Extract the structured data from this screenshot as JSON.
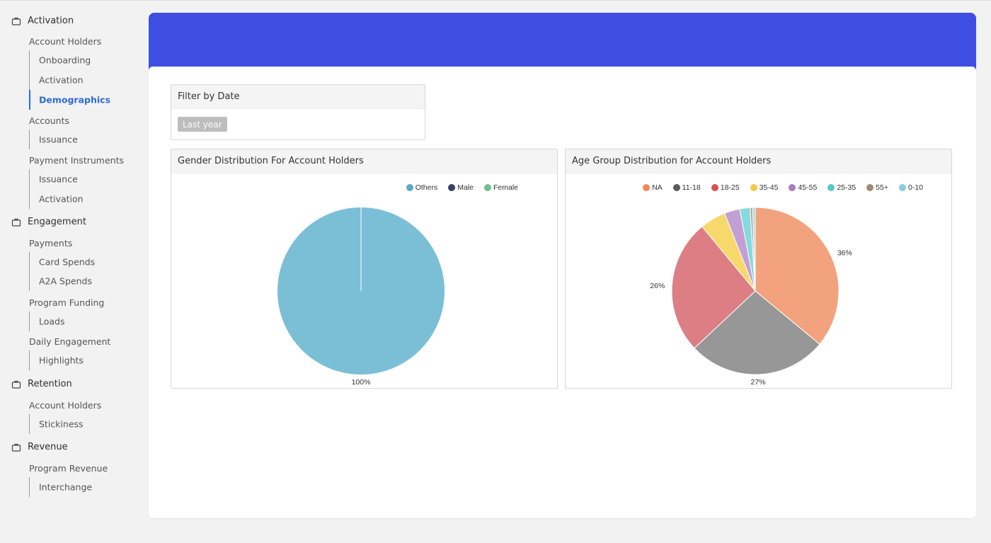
{
  "sidebar": {
    "sections": [
      {
        "label": "Activation",
        "groups": [
          {
            "label": "Account Holders",
            "items": [
              "Onboarding",
              "Activation",
              "Demographics"
            ]
          },
          {
            "label": "Accounts",
            "items": [
              "Issuance"
            ]
          },
          {
            "label": "Payment Instruments",
            "items": [
              "Issuance",
              "Activation"
            ]
          }
        ]
      },
      {
        "label": "Engagement",
        "groups": [
          {
            "label": "Payments",
            "items": [
              "Card Spends",
              "A2A Spends"
            ]
          },
          {
            "label": "Program Funding",
            "items": [
              "Loads"
            ]
          },
          {
            "label": "Daily Engagement",
            "items": [
              "Highlights"
            ]
          }
        ]
      },
      {
        "label": "Retention",
        "groups": [
          {
            "label": "Account Holders",
            "items": [
              "Stickiness"
            ]
          }
        ]
      },
      {
        "label": "Revenue",
        "groups": [
          {
            "label": "Program Revenue",
            "items": [
              "Interchange"
            ]
          }
        ]
      }
    ],
    "active_item": "Demographics"
  },
  "filter": {
    "title": "Filter by Date",
    "selected": "Last year"
  },
  "chart_data": [
    {
      "type": "pie",
      "title": "Gender Distribution For Account Holders",
      "legend": [
        "Others",
        "Male",
        "Female"
      ],
      "legend_colors": [
        "#5aa9c9",
        "#3c3f6a",
        "#6fc08a"
      ],
      "legend_position": "top-right",
      "slices": [
        {
          "name": "Others",
          "value": 100,
          "label": "100%",
          "color": "#7bbfd7"
        }
      ]
    },
    {
      "type": "pie",
      "title": "Age Group Distribution for Account Holders",
      "legend": [
        "NA",
        "11-18",
        "18-25",
        "35-45",
        "45-55",
        "25-35",
        "55+",
        "0-10"
      ],
      "legend_colors": [
        "#f0875a",
        "#5a5a5a",
        "#d9504f",
        "#f5c84a",
        "#a97bc6",
        "#58c8cc",
        "#9d8a6f",
        "#8dc9e3"
      ],
      "legend_position": "top-right",
      "slices": [
        {
          "name": "NA",
          "value": 36,
          "label": "36%",
          "color": "#f2a27d"
        },
        {
          "name": "11-18",
          "value": 27,
          "label": "27%",
          "color": "#979797"
        },
        {
          "name": "18-25",
          "value": 26,
          "label": "26%",
          "color": "#dd7e85"
        },
        {
          "name": "35-45",
          "value": 5,
          "label": "",
          "color": "#f7d86a"
        },
        {
          "name": "45-55",
          "value": 3,
          "label": "",
          "color": "#c3a0d3"
        },
        {
          "name": "25-35",
          "value": 2,
          "label": "",
          "color": "#86dadd"
        },
        {
          "name": "55+",
          "value": 0.5,
          "label": "",
          "color": "#bcae95"
        },
        {
          "name": "0-10",
          "value": 0.5,
          "label": "",
          "color": "#a8d9ea"
        }
      ]
    }
  ]
}
